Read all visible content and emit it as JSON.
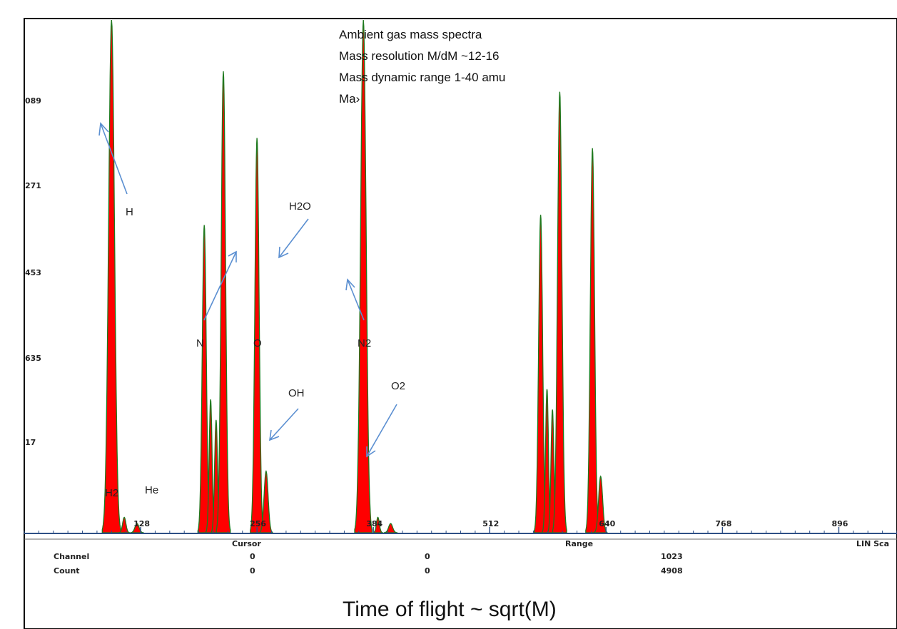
{
  "chart_data": {
    "type": "area",
    "xlim": [
      0,
      960
    ],
    "x_ticks": [
      128,
      256,
      384,
      512,
      640,
      768,
      896
    ],
    "y_tick_labels": [
      "089",
      "271",
      "453",
      "635",
      "17"
    ],
    "peaks": [
      {
        "x": 96,
        "height": 1.2,
        "sigma": 3.2
      },
      {
        "x": 110,
        "height": 0.03,
        "sigma": 1.8
      },
      {
        "x": 124,
        "height": 0.018,
        "sigma": 2.2
      },
      {
        "x": 198,
        "height": 0.6,
        "sigma": 2.2
      },
      {
        "x": 205,
        "height": 0.26,
        "sigma": 1.6
      },
      {
        "x": 211,
        "height": 0.22,
        "sigma": 1.6
      },
      {
        "x": 219,
        "height": 0.9,
        "sigma": 2.4
      },
      {
        "x": 256,
        "height": 0.77,
        "sigma": 2.3
      },
      {
        "x": 266,
        "height": 0.12,
        "sigma": 2.2
      },
      {
        "x": 373,
        "height": 1.2,
        "sigma": 3.0
      },
      {
        "x": 389,
        "height": 0.03,
        "sigma": 1.6
      },
      {
        "x": 403,
        "height": 0.018,
        "sigma": 2.2
      },
      {
        "x": 568,
        "height": 0.62,
        "sigma": 2.2
      },
      {
        "x": 575,
        "height": 0.28,
        "sigma": 1.6
      },
      {
        "x": 581,
        "height": 0.24,
        "sigma": 1.6
      },
      {
        "x": 589,
        "height": 0.86,
        "sigma": 2.4
      },
      {
        "x": 625,
        "height": 0.75,
        "sigma": 2.3
      },
      {
        "x": 634,
        "height": 0.11,
        "sigma": 2.2
      }
    ],
    "status_bar": {
      "cursor_label": "Cursor",
      "range_label": "Range",
      "scale_label": "LIN Sca",
      "channel_label": "Channel",
      "count_label": "Count",
      "channel_values": [
        "0",
        "0",
        "1023"
      ],
      "count_values": [
        "0",
        "0",
        "4908"
      ]
    },
    "annotations": {
      "H": "H",
      "H2": "H2",
      "He": "He",
      "N": "N",
      "O": "O",
      "H2O": "H2O",
      "OH": "OH",
      "N2": "N2",
      "O2": "O2"
    },
    "notes": [
      "Ambient gas mass spectra",
      "Mass resolution M/dM ~12-16",
      "Mass dynamic range 1-40 amu",
      "Ma›"
    ],
    "caption": "Time of flight ~ sqrt(M)",
    "colors": {
      "fill": "#ff0000",
      "outline": "#1f7a1f",
      "axis": "#2d4f86",
      "arrow": "#5b8fd1"
    }
  }
}
